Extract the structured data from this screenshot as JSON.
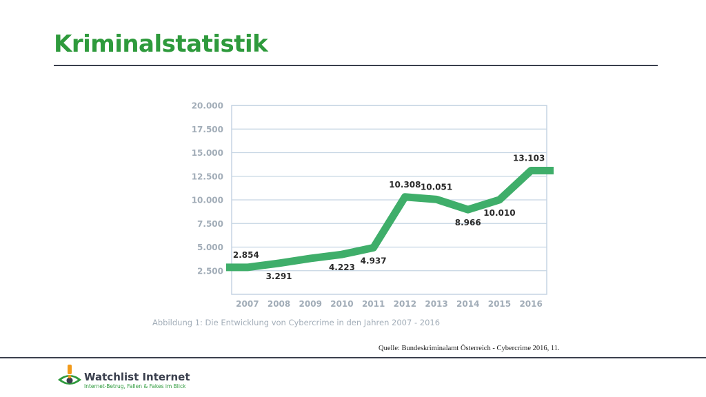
{
  "slide": {
    "title": "Kriminalstatistik",
    "caption": "Abbildung 1: Die Entwicklung von Cybercrime in den Jahren 2007 - 2016",
    "source": "Quelle: Bundeskriminalamt Österreich - Cybercrime 2016, 11."
  },
  "logo": {
    "name": "Watchlist Internet",
    "tagline": "Internet-Betrug, Fallen & Fakes im Blick",
    "icon": "eye-exclamation-icon"
  },
  "colors": {
    "title": "#2e9a3c",
    "line": "#3fae6a",
    "axis_text": "#a2adb8",
    "grid": "#c5d4e3",
    "rule": "#3a3f4d"
  },
  "chart_data": {
    "type": "line",
    "title": "",
    "xlabel": "",
    "ylabel": "",
    "x": [
      "2007",
      "2008",
      "2009",
      "2010",
      "2011",
      "2012",
      "2013",
      "2014",
      "2015",
      "2016"
    ],
    "series": [
      {
        "values": [
          2854,
          3291,
          3800,
          4223,
          4937,
          10308,
          10051,
          8966,
          10010,
          13103
        ],
        "labels": [
          "2.854",
          "3.291",
          "",
          "4.223",
          "4.937",
          "10.308",
          "10.051",
          "8.966",
          "10.010",
          "13.103"
        ]
      }
    ],
    "ylim": [
      0,
      20000
    ],
    "yticks": [
      2500,
      5000,
      7500,
      10000,
      12500,
      15000,
      17500,
      20000
    ],
    "ytick_labels": [
      "2.500",
      "5.000",
      "7.500",
      "10.000",
      "12.500",
      "15.000",
      "17.500",
      "20.000"
    ],
    "grid": true,
    "legend": "none"
  }
}
